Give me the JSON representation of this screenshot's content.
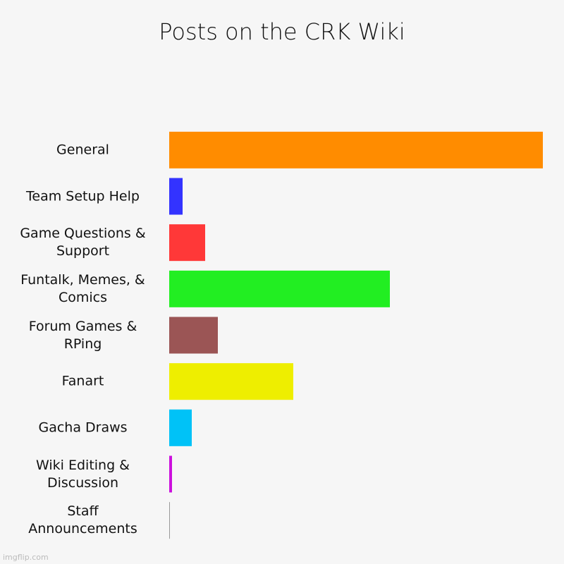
{
  "chart_data": {
    "type": "bar",
    "orientation": "horizontal",
    "title": "Posts on the CRK Wiki",
    "categories": [
      "General",
      "Team Setup Help",
      "Game Questions & Support",
      "Funtalk, Memes, & Comics",
      "Forum Games & RPing",
      "Fanart",
      "Gacha Draws",
      "Wiki Editing & Discussion",
      "Staff Announcements"
    ],
    "values": [
      530,
      19,
      51,
      313,
      69,
      176,
      32,
      4,
      0.5
    ],
    "colors": [
      "#ff8c00",
      "#3333ff",
      "#ff3838",
      "#22ee22",
      "#9b5555",
      "#eeee00",
      "#00c2f7",
      "#cc11dd",
      "#999999"
    ],
    "xlim": [
      0,
      530
    ],
    "watermark": "imgflip.com"
  }
}
